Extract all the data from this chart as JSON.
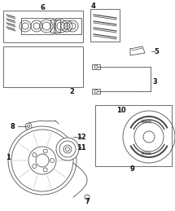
{
  "bg_color": "#ffffff",
  "line_color": "#444444",
  "label_color": "#111111",
  "figsize": [
    2.15,
    2.59
  ],
  "dpi": 100
}
